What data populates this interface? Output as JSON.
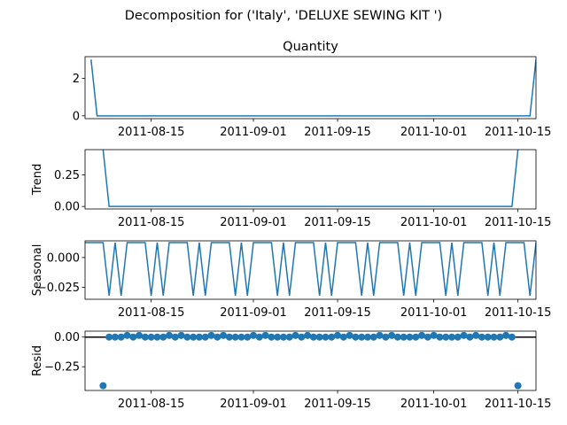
{
  "figure": {
    "suptitle": "Decomposition for ('Italy', 'DELUXE SEWING KIT ')"
  },
  "chart_data": [
    {
      "type": "line",
      "title": "Quantity",
      "ylabel": "",
      "ylim": [
        -0.15,
        3.15
      ],
      "yticks": [
        0,
        2
      ],
      "ytick_labels": [
        "0",
        "2"
      ],
      "xticks": [
        "2011-08-15",
        "2011-09-01",
        "2011-09-15",
        "2011-10-01",
        "2011-10-15"
      ],
      "x_start": "2011-08-04",
      "x_end": "2011-10-18",
      "x": [
        "2011-08-05",
        "2011-08-06",
        "2011-10-17",
        "2011-10-18"
      ],
      "series": [
        {
          "values": [
            3,
            0,
            0,
            3
          ],
          "color": "#1f77b4"
        }
      ]
    },
    {
      "type": "line",
      "title": "",
      "ylabel": "Trend",
      "ylim": [
        -0.02,
        0.45
      ],
      "yticks": [
        0.0,
        0.25
      ],
      "ytick_labels": [
        "0.00",
        "0.25"
      ],
      "xticks": [
        "2011-08-15",
        "2011-09-01",
        "2011-09-15",
        "2011-10-01",
        "2011-10-15"
      ],
      "x_start": "2011-08-04",
      "x_end": "2011-10-18",
      "x": [
        "2011-08-07",
        "2011-08-08",
        "2011-10-14",
        "2011-10-15"
      ],
      "series": [
        {
          "values": [
            0.45,
            0.0,
            0.0,
            0.45
          ],
          "color": "#1f77b4"
        }
      ]
    },
    {
      "type": "line",
      "title": "",
      "ylabel": "Seasonal",
      "ylim": [
        -0.035,
        0.014
      ],
      "yticks": [
        0.0,
        -0.025
      ],
      "ytick_labels": [
        "0.000",
        "−0.025"
      ],
      "xticks": [
        "2011-08-15",
        "2011-09-01",
        "2011-09-15",
        "2011-10-01",
        "2011-10-15"
      ],
      "x_start": "2011-08-04",
      "x_end": "2011-10-18",
      "period": 7,
      "pattern": [
        0.0125,
        0.0125,
        0.0125,
        0.0125,
        -0.032,
        0.0125,
        -0.032
      ],
      "series": [
        {
          "color": "#1f77b4"
        }
      ]
    },
    {
      "type": "scatter",
      "title": "",
      "ylabel": "Resid",
      "ylim": [
        -0.45,
        0.05
      ],
      "yticks": [
        0.0,
        -0.25
      ],
      "ytick_labels": [
        "0.00",
        "−0.25"
      ],
      "xticks": [
        "2011-08-15",
        "2011-09-01",
        "2011-09-15",
        "2011-10-01",
        "2011-10-15"
      ],
      "x_start": "2011-08-04",
      "x_end": "2011-10-18",
      "hline": 0,
      "points_first": "2011-08-07",
      "points_last": "2011-10-15",
      "outliers": [
        {
          "x": "2011-08-07",
          "y": -0.41
        },
        {
          "x": "2011-10-15",
          "y": -0.41
        }
      ],
      "bumped": {
        "pattern": [
          0.0,
          0.0,
          0.0,
          0.0,
          0.014,
          0.0,
          0.014
        ]
      },
      "series": [
        {
          "color": "#1f77b4"
        }
      ]
    }
  ]
}
